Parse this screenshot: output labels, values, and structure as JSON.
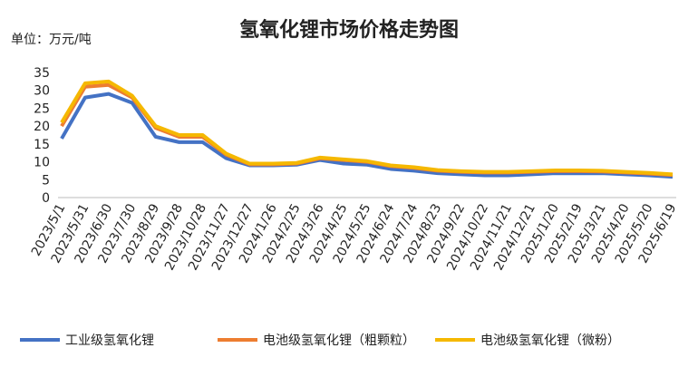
{
  "chart_data": {
    "type": "line",
    "title": "氢氧化锂市场价格走势图",
    "y_label": "单位：万元/吨",
    "categories": [
      "2023/5/1",
      "2023/5/31",
      "2023/6/30",
      "2023/7/30",
      "2023/8/29",
      "2023/9/28",
      "2023/10/28",
      "2023/11/27",
      "2023/12/27",
      "2024/1/26",
      "2024/2/25",
      "2024/3/26",
      "2024/4/25",
      "2024/5/25",
      "2024/6/24",
      "2024/7/24",
      "2024/8/23",
      "2024/9/22",
      "2024/10/22",
      "2024/11/21",
      "2024/12/21",
      "2025/1/20",
      "2025/2/19",
      "2025/3/21",
      "2025/4/20",
      "2025/5/20",
      "2025/6/19"
    ],
    "series": [
      {
        "name": "工业级氢氧化锂",
        "color": "#4472c4",
        "values": [
          16.5,
          28,
          29,
          26.5,
          17,
          15.5,
          15.5,
          11,
          9,
          9,
          9.2,
          10.5,
          9.5,
          9.2,
          8,
          7.5,
          6.8,
          6.5,
          6.2,
          6.2,
          6.5,
          6.8,
          6.8,
          6.8,
          6.5,
          6.2,
          5.8
        ]
      },
      {
        "name": "电池级氢氧化锂（粗颗粒）",
        "color": "#ed7d31",
        "values": [
          20,
          31,
          31.5,
          28,
          19.5,
          17,
          17,
          12,
          9.3,
          9.3,
          9.5,
          11,
          10.5,
          10,
          8.8,
          8.3,
          7.5,
          7.2,
          7,
          7,
          7.2,
          7.4,
          7.4,
          7.3,
          7,
          6.7,
          6.3
        ]
      },
      {
        "name": "电池级氢氧化锂（微粉）",
        "color": "#f5b800",
        "values": [
          21,
          32,
          32.5,
          28.5,
          20,
          17.5,
          17.5,
          12.3,
          9.5,
          9.5,
          9.7,
          11.2,
          10.7,
          10.2,
          9,
          8.5,
          7.7,
          7.4,
          7.2,
          7.2,
          7.4,
          7.6,
          7.6,
          7.5,
          7.2,
          6.9,
          6.5
        ]
      }
    ],
    "ylim": [
      0,
      35
    ],
    "yticks": [
      0,
      5,
      10,
      15,
      20,
      25,
      30,
      35
    ],
    "grid": false
  }
}
